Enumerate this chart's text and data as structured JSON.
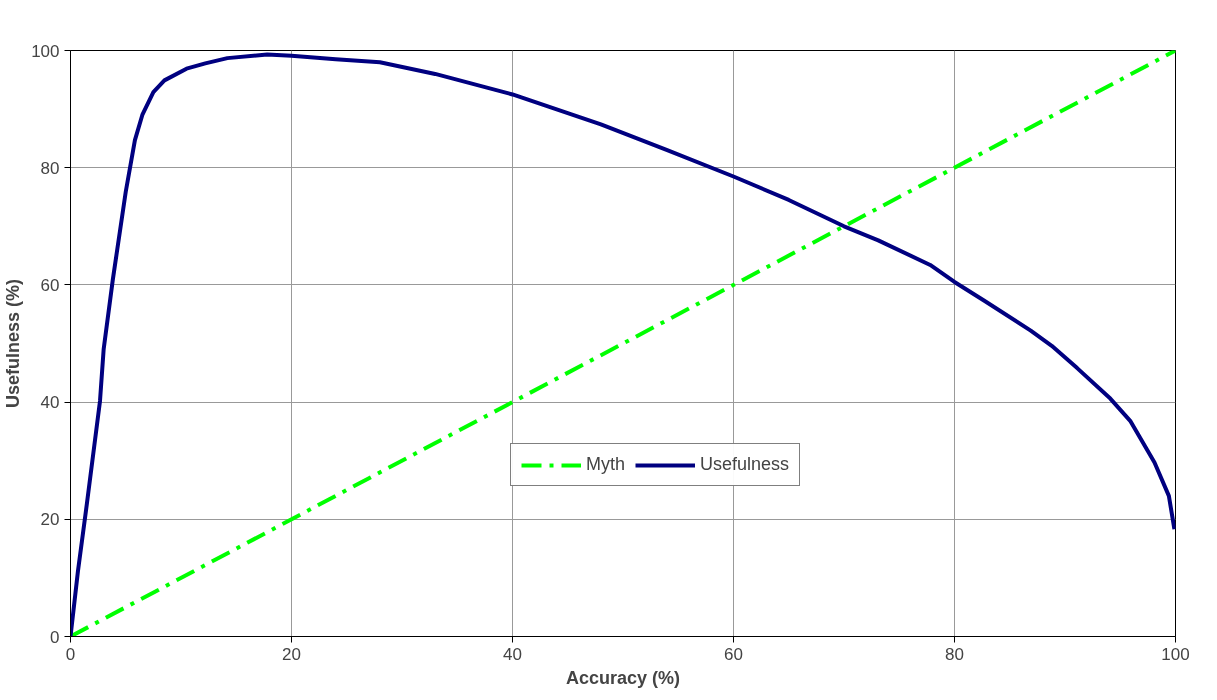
{
  "chart_data": {
    "type": "line",
    "xlabel": "Accuracy (%)",
    "ylabel": "Usefulness (%)",
    "xlim": [
      0,
      100
    ],
    "ylim": [
      0,
      100
    ],
    "xticks": [
      0,
      20,
      40,
      60,
      80,
      100
    ],
    "yticks": [
      0,
      20,
      40,
      60,
      80,
      100
    ],
    "grid": true,
    "legend": "center",
    "series": [
      {
        "name": "Myth",
        "color": "#00ff00",
        "line_style": "dashdot",
        "x": [
          0,
          100
        ],
        "values": [
          0,
          100
        ]
      },
      {
        "name": "Usefulness",
        "color": "#000080",
        "line_style": "solid",
        "x": [
          0,
          0.67,
          1.5,
          2.67,
          3.0,
          3.83,
          5.0,
          5.83,
          6.5,
          7.5,
          8.5,
          10.5,
          12.2,
          14.2,
          17.8,
          20,
          24,
          28,
          33,
          40,
          48,
          54,
          60,
          65,
          70,
          73.1,
          77.8,
          80,
          82.7,
          86.9,
          88.8,
          91.1,
          94.1,
          95.9,
          98.1,
          99.4,
          99.9
        ],
        "values": [
          0,
          11.1,
          22.9,
          40.2,
          49,
          60.9,
          75.9,
          84.7,
          89,
          92.9,
          94.9,
          96.9,
          97.8,
          98.7,
          99.3,
          99.1,
          98.5,
          98,
          96,
          92.5,
          87.4,
          83,
          78.5,
          74.5,
          70,
          67.6,
          63.4,
          60.5,
          57.3,
          52.2,
          49.6,
          45.8,
          40.6,
          36.8,
          29.7,
          24,
          18.3
        ]
      }
    ]
  }
}
